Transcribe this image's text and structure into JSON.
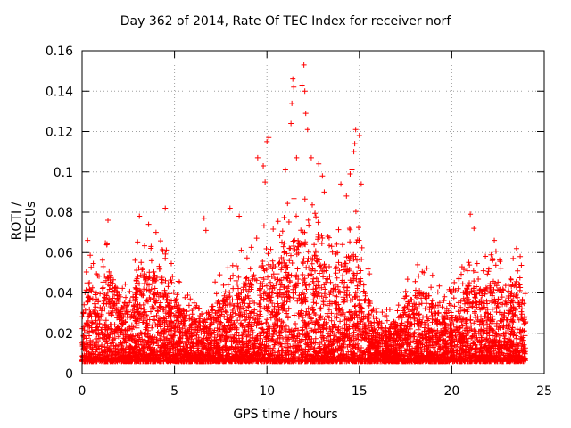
{
  "chart_data": {
    "type": "scatter",
    "title": "Day 362 of 2014, Rate Of TEC Index for receiver norf",
    "xlabel": "GPS time / hours",
    "ylabel": "ROTI / TECUs",
    "xlim": [
      0,
      25
    ],
    "ylim": [
      0,
      0.16
    ],
    "xticks": [
      0,
      5,
      10,
      15,
      20,
      25
    ],
    "yticks": [
      0,
      0.02,
      0.04,
      0.06,
      0.08,
      0.1,
      0.12,
      0.14,
      0.16
    ],
    "xtick_labels": [
      "0",
      "5",
      "10",
      "15",
      "20",
      "25"
    ],
    "ytick_labels": [
      "0",
      "0.02",
      "0.04",
      "0.06",
      "0.08",
      "0.1",
      "0.12",
      "0.14",
      "0.16"
    ],
    "grid": true,
    "marker": "+",
    "color": "#ff0000",
    "notable_points": [
      {
        "x": 0.3,
        "y": 0.066
      },
      {
        "x": 1.4,
        "y": 0.076
      },
      {
        "x": 3.1,
        "y": 0.078
      },
      {
        "x": 3.6,
        "y": 0.074
      },
      {
        "x": 4.0,
        "y": 0.07
      },
      {
        "x": 4.5,
        "y": 0.082
      },
      {
        "x": 6.6,
        "y": 0.077
      },
      {
        "x": 6.7,
        "y": 0.071
      },
      {
        "x": 8.0,
        "y": 0.082
      },
      {
        "x": 8.5,
        "y": 0.078
      },
      {
        "x": 9.5,
        "y": 0.107
      },
      {
        "x": 9.8,
        "y": 0.103
      },
      {
        "x": 9.9,
        "y": 0.095
      },
      {
        "x": 10.0,
        "y": 0.115
      },
      {
        "x": 10.1,
        "y": 0.117
      },
      {
        "x": 11.0,
        "y": 0.101
      },
      {
        "x": 11.3,
        "y": 0.124
      },
      {
        "x": 11.35,
        "y": 0.134
      },
      {
        "x": 11.4,
        "y": 0.146
      },
      {
        "x": 11.45,
        "y": 0.142
      },
      {
        "x": 11.6,
        "y": 0.107
      },
      {
        "x": 11.9,
        "y": 0.143
      },
      {
        "x": 12.0,
        "y": 0.153
      },
      {
        "x": 12.05,
        "y": 0.14
      },
      {
        "x": 12.1,
        "y": 0.129
      },
      {
        "x": 12.2,
        "y": 0.121
      },
      {
        "x": 12.4,
        "y": 0.107
      },
      {
        "x": 12.8,
        "y": 0.104
      },
      {
        "x": 13.0,
        "y": 0.098
      },
      {
        "x": 13.1,
        "y": 0.09
      },
      {
        "x": 14.0,
        "y": 0.094
      },
      {
        "x": 14.3,
        "y": 0.088
      },
      {
        "x": 14.5,
        "y": 0.099
      },
      {
        "x": 14.6,
        "y": 0.101
      },
      {
        "x": 14.7,
        "y": 0.11
      },
      {
        "x": 14.75,
        "y": 0.114
      },
      {
        "x": 14.8,
        "y": 0.121
      },
      {
        "x": 15.0,
        "y": 0.118
      },
      {
        "x": 15.1,
        "y": 0.094
      },
      {
        "x": 21.0,
        "y": 0.079
      },
      {
        "x": 21.2,
        "y": 0.072
      },
      {
        "x": 22.3,
        "y": 0.066
      },
      {
        "x": 23.5,
        "y": 0.062
      },
      {
        "x": 23.7,
        "y": 0.058
      }
    ],
    "base_distribution": {
      "x_range": [
        0,
        24
      ],
      "typical_y_range": [
        0.005,
        0.045
      ],
      "point_count_estimate": 6000
    }
  }
}
